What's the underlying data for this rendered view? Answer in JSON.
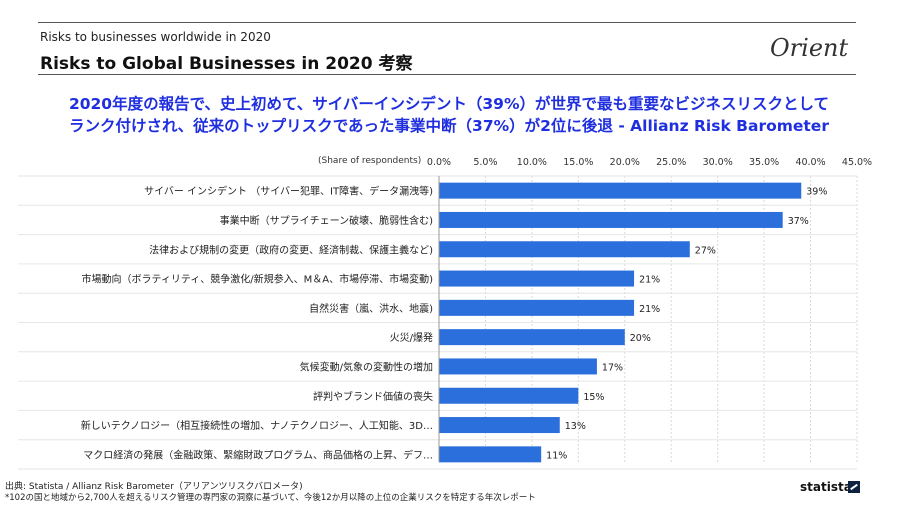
{
  "header": {
    "subtitle": "Risks to businesses worldwide in 2020",
    "title": "Risks to Global Businesses in 2020 考察",
    "brand": "Orient"
  },
  "headline": {
    "line1": "2020年度の報告で、史上初めて、サイバーインシデント（39%）が世界で最も重要なビジネスリスクとして",
    "line2": "ランク付けされ、従来のトップリスクであった事業中断（37%）が2位に後退 - Allianz Risk Barometer"
  },
  "chart_data": {
    "type": "bar",
    "orientation": "horizontal",
    "axis_label": "(Share of respondents)",
    "xlim": [
      0,
      45
    ],
    "ticks": [
      "0.0%",
      "5.0%",
      "10.0%",
      "15.0%",
      "20.0%",
      "25.0%",
      "30.0%",
      "35.0%",
      "40.0%",
      "45.0%"
    ],
    "categories": [
      "サイバー インシデント （サイバー犯罪、IT障害、データ漏洩等)",
      "事業中断（サプライチェーン破壊、脆弱性含む)",
      "法律および規制の変更（政府の変更、経済制裁、保護主義など)",
      "市場動向（ボラティリティ、競争激化/新規参入、M＆A、市場停滞、市場変動)",
      "自然災害（嵐、洪水、地震)",
      "火災/爆発",
      "気候変動/気象の変動性の増加",
      "評判やブランド価値の喪失",
      "新しいテクノロジー（相互接続性の増加、ナノテクノロジー、人工知能、3D…",
      "マクロ経済の発展（金融政策、緊縮財政プログラム、商品価格の上昇、デフ…"
    ],
    "values": [
      39,
      37,
      27,
      21,
      21,
      20,
      17,
      15,
      13,
      11
    ],
    "value_labels": [
      "39%",
      "37%",
      "27%",
      "21%",
      "21%",
      "20%",
      "17%",
      "15%",
      "13%",
      "11%"
    ],
    "bar_color": "#2a6fdb",
    "grid": true
  },
  "footer": {
    "source": "出典: Statista / Allianz Risk Barometer（アリアンツリスクバロメータ)",
    "note": "*102の国と地域から2,700人を超えるリスク管理の専門家の洞察に基づいて、今後12か月以降の上位の企業リスクを特定する年次レポート",
    "statista": "statista"
  }
}
